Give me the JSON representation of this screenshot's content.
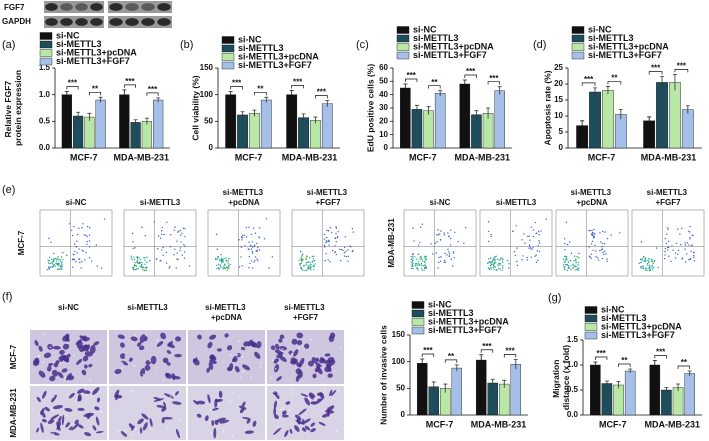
{
  "chart_data": [
    {
      "type": "bar",
      "panel": "(a)",
      "y_label": "Relative FGF7 protein expression",
      "categories": [
        "MCF-7",
        "MDA-MB-231"
      ],
      "series": [
        {
          "name": "si-NC",
          "color": "#111111",
          "values": [
            1.0,
            1.0
          ],
          "errors": [
            0.06,
            0.09
          ]
        },
        {
          "name": "si-METTL3",
          "color": "#1e4d5c",
          "values": [
            0.6,
            0.48
          ],
          "errors": [
            0.07,
            0.05
          ]
        },
        {
          "name": "si-METTL3+pcDNA",
          "color": "#b9e7a6",
          "values": [
            0.58,
            0.5
          ],
          "errors": [
            0.07,
            0.06
          ]
        },
        {
          "name": "si-METTL3+FGF7",
          "color": "#a6bfe8",
          "values": [
            0.9,
            0.9
          ],
          "errors": [
            0.05,
            0.04
          ]
        }
      ],
      "annotations": [
        [
          "***",
          "**"
        ],
        [
          "***",
          "***"
        ]
      ],
      "ylim": [
        0,
        1.5
      ],
      "yticks": [
        {
          "value": 0,
          "label": "0.0"
        },
        {
          "value": 0.5,
          "label": "0.5"
        },
        {
          "value": 1,
          "label": "1.0"
        },
        {
          "value": 1.5,
          "label": "1.5"
        }
      ]
    },
    {
      "type": "bar",
      "panel": "(b)",
      "y_label": "Cell viability (%)",
      "categories": [
        "MCF-7",
        "MDA-MB-231"
      ],
      "series": [
        {
          "name": "si-NC",
          "color": "#111111",
          "values": [
            100,
            100
          ],
          "errors": [
            6,
            8
          ]
        },
        {
          "name": "si-METTL3",
          "color": "#1e4d5c",
          "values": [
            62,
            57
          ],
          "errors": [
            6,
            7
          ]
        },
        {
          "name": "si-METTL3+pcDNA",
          "color": "#b9e7a6",
          "values": [
            65,
            52
          ],
          "errors": [
            6,
            6
          ]
        },
        {
          "name": "si-METTL3+FGF7",
          "color": "#a6bfe8",
          "values": [
            90,
            83
          ],
          "errors": [
            5,
            6
          ]
        }
      ],
      "annotations": [
        [
          "***",
          "**"
        ],
        [
          "***",
          "***"
        ]
      ],
      "ylim": [
        0,
        150
      ],
      "yticks": [
        0,
        50,
        100,
        150
      ]
    },
    {
      "type": "bar",
      "panel": "(c)",
      "y_label": "EdU positive cells (%)",
      "categories": [
        "MCF-7",
        "MDA-MB-231"
      ],
      "series": [
        {
          "name": "si-NC",
          "color": "#111111",
          "values": [
            45,
            48
          ],
          "errors": [
            3,
            3
          ]
        },
        {
          "name": "si-METTL3",
          "color": "#1e4d5c",
          "values": [
            29,
            25
          ],
          "errors": [
            3,
            3
          ]
        },
        {
          "name": "si-METTL3+pcDNA",
          "color": "#b9e7a6",
          "values": [
            28,
            26
          ],
          "errors": [
            3,
            4
          ]
        },
        {
          "name": "si-METTL3+FGF7",
          "color": "#a6bfe8",
          "values": [
            41,
            43
          ],
          "errors": [
            2,
            3
          ]
        }
      ],
      "annotations": [
        [
          "***",
          "**"
        ],
        [
          "***",
          "***"
        ]
      ],
      "ylim": [
        0,
        60
      ],
      "yticks": [
        0,
        10,
        20,
        30,
        40,
        50,
        60
      ]
    },
    {
      "type": "bar",
      "panel": "(d)",
      "y_label": "Apoptosis rate (%)",
      "categories": [
        "MCF-7",
        "MDA-MB-231"
      ],
      "series": [
        {
          "name": "si-NC",
          "color": "#111111",
          "values": [
            7,
            8.5
          ],
          "errors": [
            1.5,
            1.2
          ]
        },
        {
          "name": "si-METTL3",
          "color": "#1e4d5c",
          "values": [
            17.5,
            20.5
          ],
          "errors": [
            1.3,
            1.8
          ]
        },
        {
          "name": "si-METTL3+pcDNA",
          "color": "#b9e7a6",
          "values": [
            18,
            20.5
          ],
          "errors": [
            1.2,
            2.5
          ]
        },
        {
          "name": "si-METTL3+FGF7",
          "color": "#a6bfe8",
          "values": [
            10.5,
            12
          ],
          "errors": [
            1.5,
            1.2
          ]
        }
      ],
      "annotations": [
        [
          "***",
          "**"
        ],
        [
          "***",
          "***"
        ]
      ],
      "ylim": [
        0,
        25
      ],
      "yticks": [
        0,
        5,
        10,
        15,
        20,
        25
      ]
    },
    {
      "type": "bar",
      "y_label": "Number of invasive cells",
      "categories": [
        "MCF-7",
        "MDA-MB-231"
      ],
      "series": [
        {
          "name": "si-NC",
          "color": "#111111",
          "values": [
            97,
            103
          ],
          "errors": [
            8,
            10
          ]
        },
        {
          "name": "si-METTL3",
          "color": "#1e4d5c",
          "values": [
            53,
            60
          ],
          "errors": [
            9,
            7
          ]
        },
        {
          "name": "si-METTL3+pcDNA",
          "color": "#b9e7a6",
          "values": [
            50,
            58
          ],
          "errors": [
            8,
            7
          ]
        },
        {
          "name": "si-METTL3+FGF7",
          "color": "#a6bfe8",
          "values": [
            88,
            95
          ],
          "errors": [
            6,
            9
          ]
        }
      ],
      "annotations": [
        [
          "***",
          "**"
        ],
        [
          "***",
          "***"
        ]
      ],
      "ylim": [
        0,
        150
      ],
      "yticks": [
        0,
        50,
        100,
        150
      ]
    },
    {
      "type": "bar",
      "panel": "(g)",
      "y_label": "Migration distance (x fold)",
      "categories": [
        "MCF-7",
        "MDA-MB-231"
      ],
      "series": [
        {
          "name": "si-NC",
          "color": "#111111",
          "values": [
            1.0,
            1.0
          ],
          "errors": [
            0.06,
            0.09
          ]
        },
        {
          "name": "si-METTL3",
          "color": "#1e4d5c",
          "values": [
            0.63,
            0.5
          ],
          "errors": [
            0.05,
            0.05
          ]
        },
        {
          "name": "si-METTL3+pcDNA",
          "color": "#b9e7a6",
          "values": [
            0.6,
            0.55
          ],
          "errors": [
            0.07,
            0.07
          ]
        },
        {
          "name": "si-METTL3+FGF7",
          "color": "#a6bfe8",
          "values": [
            0.88,
            0.83
          ],
          "errors": [
            0.04,
            0.05
          ]
        }
      ],
      "annotations": [
        [
          "***",
          "**"
        ],
        [
          "***",
          "**"
        ]
      ],
      "ylim": [
        0,
        1.5
      ],
      "yticks": [
        {
          "value": 0,
          "label": "0.0"
        },
        {
          "value": 0.5,
          "label": "0.5"
        },
        {
          "value": 1,
          "label": "1.0"
        },
        {
          "value": 1.5,
          "label": "1.5"
        }
      ]
    }
  ],
  "blot": {
    "labels": [
      "FGF7",
      "GAPDH"
    ]
  },
  "flow": {
    "panel": "(e)",
    "columns": [
      "si-NC",
      "si-METTL3",
      "si-METTL3 +pcDNA",
      "si-METTL3 +FGF7"
    ],
    "rows": [
      "MCF-7",
      "MDA-MB-231"
    ]
  },
  "invasion": {
    "panel": "(f)",
    "columns": [
      "si-NC",
      "si-METTL3",
      "si-METTL3 +pcDNA",
      "si-METTL3 +FGF7"
    ],
    "rows": [
      "MCF-7",
      "MDA-MB-231"
    ]
  }
}
